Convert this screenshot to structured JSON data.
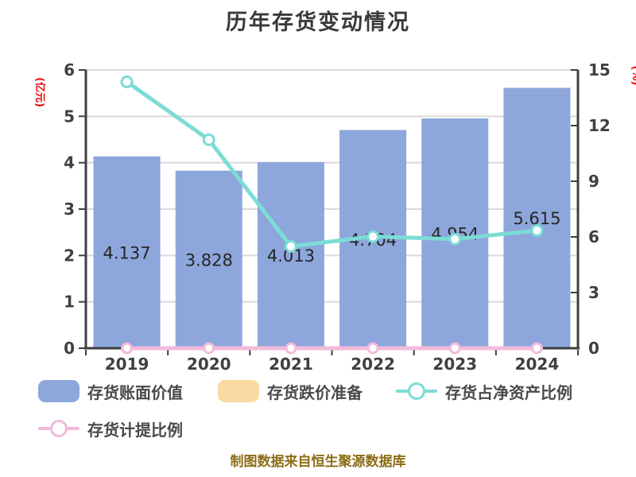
{
  "title": "历年存货变动情况",
  "caption": "制图数据来自恒生聚源数据库",
  "colors": {
    "title": "#3A3A3A",
    "axis": "#3F3F3F",
    "grid": "#D9D9D9",
    "tick_text": "#404040",
    "data_label_text": "#262626",
    "legend_text": "#4A4A4A",
    "unit_label": "#EE0A0A",
    "caption_text": "#8C6C16",
    "bar_blue": "#8DA6DB",
    "bar_orange": "#FBD9A2",
    "line_cyan": "#7CDCD6",
    "line_pink": "#F1BADA",
    "marker_fill": "#FFFFFF"
  },
  "chart_data": {
    "type": "bar",
    "title": "历年存货变动情况",
    "categories": [
      "2019",
      "2020",
      "2021",
      "2022",
      "2023",
      "2024"
    ],
    "left_axis": {
      "unit": "(亿元)",
      "min": 0,
      "max": 6,
      "ticks": [
        0,
        1,
        2,
        3,
        4,
        5,
        6
      ]
    },
    "right_axis": {
      "unit": "(%)",
      "min": 0,
      "max": 15,
      "ticks": [
        0,
        3,
        6,
        9,
        12,
        15
      ]
    },
    "grid": true,
    "legend_position": "bottom",
    "series": [
      {
        "id": "inventory-book-value",
        "name": "存货账面价值",
        "type": "bar",
        "axis": "left",
        "color": "#8DA6DB",
        "values": [
          4.137,
          3.828,
          4.013,
          4.704,
          4.954,
          5.615
        ],
        "display_labels": [
          "4.137",
          "3.828",
          "4.013",
          "4.704",
          "4.954",
          "5.615"
        ]
      },
      {
        "id": "inventory-writedown-reserve",
        "name": "存货跌价准备",
        "type": "bar",
        "axis": "left",
        "color": "#FBD9A2",
        "values": [
          0,
          0,
          0,
          0,
          0,
          0
        ]
      },
      {
        "id": "inventory-net-asset-ratio",
        "name": "存货占净资产比例",
        "type": "line",
        "axis": "right",
        "color": "#7CDCD6",
        "values": [
          14.36,
          11.24,
          5.49,
          6.02,
          5.88,
          6.35
        ]
      },
      {
        "id": "inventory-provision-ratio",
        "name": "存货计提比例",
        "type": "line",
        "axis": "right",
        "color": "#F1BADA",
        "values": [
          0,
          0,
          0,
          0,
          0,
          0
        ]
      }
    ]
  }
}
